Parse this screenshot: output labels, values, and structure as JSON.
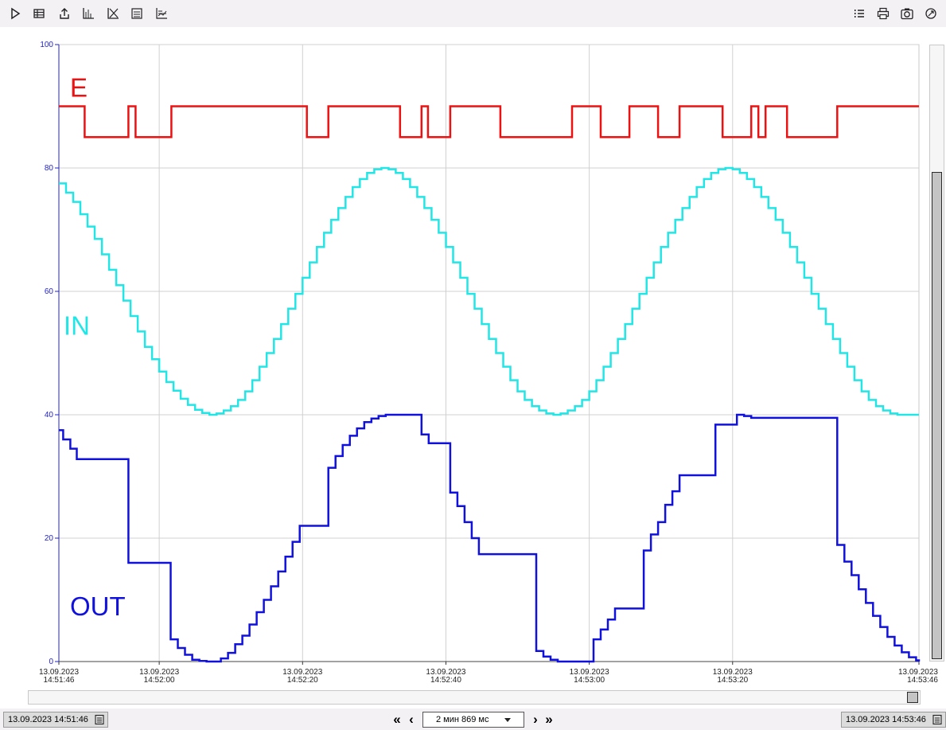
{
  "toolbar": {
    "left": [
      {
        "name": "play-icon"
      },
      {
        "name": "table-icon"
      },
      {
        "name": "export-icon"
      },
      {
        "name": "axes-icon"
      },
      {
        "name": "axes-off-icon"
      },
      {
        "name": "chart-lines-icon"
      },
      {
        "name": "chart-settings-icon"
      }
    ],
    "right": [
      {
        "name": "legend-list-icon"
      },
      {
        "name": "print-icon"
      },
      {
        "name": "camera-icon"
      },
      {
        "name": "refresh-icon"
      }
    ]
  },
  "chart_data": {
    "type": "line",
    "grid": true,
    "ylim": [
      0,
      100
    ],
    "y_ticks": [
      "0",
      "20",
      "40",
      "60",
      "80",
      "100"
    ],
    "x_tick_labels": [
      {
        "date": "13.09.2023",
        "time": "14:51:46"
      },
      {
        "date": "13.09.2023",
        "time": "14:52:00"
      },
      {
        "date": "13.09.2023",
        "time": "14:52:20"
      },
      {
        "date": "13.09.2023",
        "time": "14:52:40"
      },
      {
        "date": "13.09.2023",
        "time": "14:53:00"
      },
      {
        "date": "13.09.2023",
        "time": "14:53:20"
      },
      {
        "date": "13.09.2023",
        "time": "14:53:46"
      }
    ],
    "xlim_seconds": [
      0,
      120
    ],
    "x_unit": "seconds from 14:51:46",
    "series": [
      {
        "name": "E",
        "color": "#ee1111",
        "label_pos": "top-left",
        "step": true,
        "points": [
          [
            0,
            90
          ],
          [
            3.6,
            85
          ],
          [
            9.7,
            90
          ],
          [
            10.7,
            85
          ],
          [
            15.7,
            90
          ],
          [
            34.6,
            85
          ],
          [
            37.6,
            90
          ],
          [
            47.6,
            85
          ],
          [
            50.6,
            90
          ],
          [
            51.5,
            85
          ],
          [
            54.6,
            90
          ],
          [
            61.6,
            85
          ],
          [
            71.6,
            90
          ],
          [
            75.6,
            85
          ],
          [
            79.6,
            90
          ],
          [
            83.6,
            85
          ],
          [
            86.6,
            90
          ],
          [
            92.6,
            85
          ],
          [
            96.6,
            90
          ],
          [
            97.6,
            85
          ],
          [
            98.6,
            90
          ],
          [
            101.6,
            85
          ],
          [
            108.6,
            90
          ],
          [
            120,
            90
          ]
        ]
      },
      {
        "name": "IN",
        "color": "#22e6e6",
        "label_pos": "middle-left",
        "step": true,
        "points": [
          [
            0,
            77.5
          ],
          [
            1,
            76
          ],
          [
            2,
            74.5
          ],
          [
            3,
            72.5
          ],
          [
            4,
            70.5
          ],
          [
            5,
            68.5
          ],
          [
            6,
            66
          ],
          [
            7,
            63.5
          ],
          [
            8,
            61
          ],
          [
            9,
            58.5
          ],
          [
            10,
            56
          ],
          [
            11,
            53.5
          ],
          [
            12,
            51
          ],
          [
            13,
            49
          ],
          [
            14,
            47
          ],
          [
            15,
            45.3
          ],
          [
            16,
            43.9
          ],
          [
            17,
            42.6
          ],
          [
            18,
            41.6
          ],
          [
            19,
            40.8
          ],
          [
            20,
            40.3
          ],
          [
            21,
            40
          ],
          [
            22,
            40.2
          ],
          [
            23,
            40.7
          ],
          [
            24,
            41.4
          ],
          [
            25,
            42.4
          ],
          [
            26,
            43.8
          ],
          [
            27,
            45.6
          ],
          [
            28,
            47.8
          ],
          [
            29,
            50
          ],
          [
            30,
            52.3
          ],
          [
            31,
            54.7
          ],
          [
            32,
            57.2
          ],
          [
            33,
            59.6
          ],
          [
            34,
            62.2
          ],
          [
            35,
            64.7
          ],
          [
            36,
            67.2
          ],
          [
            37,
            69.5
          ],
          [
            38,
            71.6
          ],
          [
            39,
            73.5
          ],
          [
            40,
            75.3
          ],
          [
            41,
            76.9
          ],
          [
            42,
            78.2
          ],
          [
            43,
            79.2
          ],
          [
            44,
            79.8
          ],
          [
            45,
            80
          ],
          [
            46,
            79.8
          ],
          [
            47,
            79.2
          ],
          [
            48,
            78.2
          ],
          [
            49,
            76.9
          ],
          [
            50,
            75.3
          ],
          [
            51,
            73.5
          ],
          [
            52,
            71.6
          ],
          [
            53,
            69.5
          ],
          [
            54,
            67.2
          ],
          [
            55,
            64.7
          ],
          [
            56,
            62.2
          ],
          [
            57,
            59.6
          ],
          [
            58,
            57.2
          ],
          [
            59,
            54.7
          ],
          [
            60,
            52.3
          ],
          [
            61,
            50
          ],
          [
            62,
            47.8
          ],
          [
            63,
            45.6
          ],
          [
            64,
            43.8
          ],
          [
            65,
            42.4
          ],
          [
            66,
            41.4
          ],
          [
            67,
            40.7
          ],
          [
            68,
            40.2
          ],
          [
            69,
            40
          ],
          [
            70,
            40.2
          ],
          [
            71,
            40.7
          ],
          [
            72,
            41.4
          ],
          [
            73,
            42.4
          ],
          [
            74,
            43.8
          ],
          [
            75,
            45.6
          ],
          [
            76,
            47.8
          ],
          [
            77,
            50
          ],
          [
            78,
            52.3
          ],
          [
            79,
            54.7
          ],
          [
            80,
            57.2
          ],
          [
            81,
            59.6
          ],
          [
            82,
            62.2
          ],
          [
            83,
            64.7
          ],
          [
            84,
            67.2
          ],
          [
            85,
            69.5
          ],
          [
            86,
            71.6
          ],
          [
            87,
            73.5
          ],
          [
            88,
            75.3
          ],
          [
            89,
            76.9
          ],
          [
            90,
            78.2
          ],
          [
            91,
            79.2
          ],
          [
            92,
            79.8
          ],
          [
            93,
            80
          ],
          [
            94,
            79.8
          ],
          [
            95,
            79.2
          ],
          [
            96,
            78.2
          ],
          [
            97,
            76.9
          ],
          [
            98,
            75.3
          ],
          [
            99,
            73.5
          ],
          [
            100,
            71.6
          ],
          [
            101,
            69.5
          ],
          [
            102,
            67.2
          ],
          [
            103,
            64.7
          ],
          [
            104,
            62.2
          ],
          [
            105,
            59.6
          ],
          [
            106,
            57.2
          ],
          [
            107,
            54.7
          ],
          [
            108,
            52.3
          ],
          [
            109,
            50
          ],
          [
            110,
            47.8
          ],
          [
            111,
            45.6
          ],
          [
            112,
            43.8
          ],
          [
            113,
            42.4
          ],
          [
            114,
            41.4
          ],
          [
            115,
            40.7
          ],
          [
            116,
            40.2
          ],
          [
            117,
            40
          ],
          [
            120,
            40
          ]
        ]
      },
      {
        "name": "OUT",
        "color": "#1111dd",
        "label_pos": "bottom-left",
        "step": true,
        "points": [
          [
            0,
            37.5
          ],
          [
            0.6,
            36
          ],
          [
            1.6,
            34.5
          ],
          [
            2.5,
            32.8
          ],
          [
            9.7,
            16
          ],
          [
            15.6,
            3.6
          ],
          [
            16.6,
            2.2
          ],
          [
            17.6,
            1.1
          ],
          [
            18.6,
            0.3
          ],
          [
            19.6,
            0.1
          ],
          [
            20.6,
            0
          ],
          [
            22.6,
            0.5
          ],
          [
            23.6,
            1.4
          ],
          [
            24.6,
            2.8
          ],
          [
            25.6,
            4.2
          ],
          [
            26.6,
            6
          ],
          [
            27.6,
            8
          ],
          [
            28.6,
            10
          ],
          [
            29.6,
            12.2
          ],
          [
            30.6,
            14.6
          ],
          [
            31.6,
            17
          ],
          [
            32.6,
            19.4
          ],
          [
            33.6,
            22
          ],
          [
            37.6,
            31.4
          ],
          [
            38.6,
            33.3
          ],
          [
            39.6,
            35.1
          ],
          [
            40.6,
            36.6
          ],
          [
            41.6,
            37.8
          ],
          [
            42.6,
            38.8
          ],
          [
            43.6,
            39.4
          ],
          [
            44.6,
            39.8
          ],
          [
            45.6,
            40
          ],
          [
            50.6,
            36.8
          ],
          [
            51.6,
            35.4
          ],
          [
            54.6,
            27.4
          ],
          [
            55.6,
            25.2
          ],
          [
            56.6,
            22.6
          ],
          [
            57.6,
            20
          ],
          [
            58.6,
            17.4
          ],
          [
            66.6,
            1.7
          ],
          [
            67.6,
            0.8
          ],
          [
            68.6,
            0.3
          ],
          [
            69.6,
            0
          ],
          [
            74.6,
            3.6
          ],
          [
            75.6,
            5.2
          ],
          [
            76.6,
            6.8
          ],
          [
            77.6,
            8.6
          ],
          [
            81.6,
            18
          ],
          [
            82.6,
            20.6
          ],
          [
            83.6,
            22.6
          ],
          [
            84.6,
            25.4
          ],
          [
            85.6,
            27.6
          ],
          [
            86.6,
            30.2
          ],
          [
            91.6,
            38.4
          ],
          [
            94.6,
            40
          ],
          [
            95.6,
            39.8
          ],
          [
            96.6,
            39.5
          ],
          [
            108.6,
            18.9
          ],
          [
            109.6,
            16.2
          ],
          [
            110.6,
            14
          ],
          [
            111.6,
            11.7
          ],
          [
            112.6,
            9.5
          ],
          [
            113.6,
            7.4
          ],
          [
            114.6,
            5.6
          ],
          [
            115.6,
            4
          ],
          [
            116.6,
            2.6
          ],
          [
            117.6,
            1.5
          ],
          [
            118.6,
            0.7
          ],
          [
            119.6,
            0.2
          ],
          [
            120,
            0
          ]
        ]
      }
    ]
  },
  "scrollbars": {
    "vertical_fill_fraction": 0.795,
    "horizontal_position": "end"
  },
  "statusbar": {
    "start_time": "13.09.2023 14:51:46",
    "range_label": "2 мин 869 мс",
    "end_time": "13.09.2023 14:53:46",
    "nav": {
      "first": "«",
      "prev": "‹",
      "next": "›",
      "last": "»"
    }
  }
}
